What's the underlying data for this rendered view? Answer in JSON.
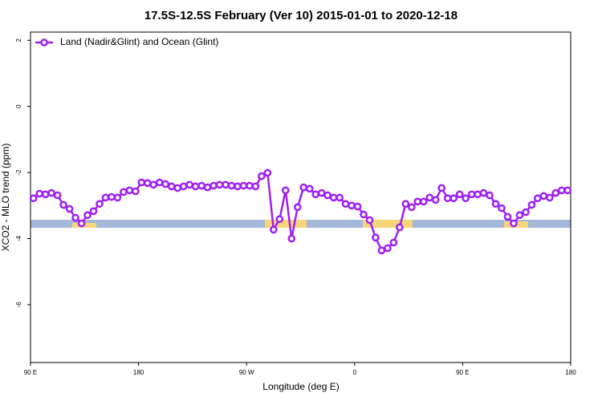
{
  "chart_data": {
    "type": "line",
    "title": "17.5S-12.5S February (Ver 10)   2015-01-01 to 2020-12-18",
    "x_label": "Longitude (deg E)",
    "y_label": "XCO2 - MLO trend (ppm)",
    "xlim": [
      90,
      540
    ],
    "xticks": [
      {
        "value": 90,
        "label": "90 E"
      },
      {
        "value": 180,
        "label": "180"
      },
      {
        "value": 270,
        "label": "90 W"
      },
      {
        "value": 360,
        "label": "0"
      },
      {
        "value": 450,
        "label": "90 E"
      },
      {
        "value": 540,
        "label": "180"
      }
    ],
    "ylim": [
      -7.75,
      2.25
    ],
    "yticks": [
      2,
      0,
      -2,
      -4,
      -6
    ],
    "legend": "top-left",
    "x": [
      92.5,
      97.5,
      102.5,
      107.5,
      112.5,
      117.5,
      122.5,
      127.5,
      132.5,
      137.5,
      142.5,
      147.5,
      152.5,
      157.5,
      162.5,
      167.5,
      172.5,
      177.5,
      182.5,
      187.5,
      192.5,
      197.5,
      202.5,
      207.5,
      212.5,
      217.5,
      222.5,
      227.5,
      232.5,
      237.5,
      242.5,
      247.5,
      252.5,
      257.5,
      262.5,
      267.5,
      272.5,
      277.5,
      282.5,
      287.5,
      292.5,
      297.5,
      302.5,
      307.5,
      312.5,
      317.5,
      322.5,
      327.5,
      332.5,
      337.5,
      342.5,
      347.5,
      352.5,
      357.5,
      362.5,
      367.5,
      372.5,
      377.5,
      382.5,
      387.5,
      392.5,
      397.5,
      402.5,
      407.5,
      412.5,
      417.5,
      422.5,
      427.5,
      432.5,
      437.5,
      442.5,
      447.5,
      452.5,
      457.5,
      462.5,
      467.5,
      472.5,
      477.5,
      482.5,
      487.5,
      492.5,
      497.5,
      502.5,
      507.5,
      512.5,
      517.5,
      522.5,
      527.5,
      532.5,
      537.5
    ],
    "series": [
      {
        "name": "Land (Nadir&Glint) and Ocean (Glint)",
        "color": "#a020f0",
        "values": [
          -2.78,
          -2.64,
          -2.66,
          -2.62,
          -2.69,
          -2.98,
          -3.1,
          -3.37,
          -3.54,
          -3.29,
          -3.17,
          -2.95,
          -2.76,
          -2.74,
          -2.76,
          -2.59,
          -2.54,
          -2.57,
          -2.3,
          -2.32,
          -2.37,
          -2.3,
          -2.35,
          -2.42,
          -2.47,
          -2.42,
          -2.37,
          -2.42,
          -2.4,
          -2.45,
          -2.4,
          -2.37,
          -2.37,
          -2.4,
          -2.42,
          -2.4,
          -2.4,
          -2.42,
          -2.11,
          -2.01,
          -3.73,
          -3.41,
          -2.54,
          -4.0,
          -3.05,
          -2.45,
          -2.49,
          -2.66,
          -2.62,
          -2.69,
          -2.76,
          -2.76,
          -2.95,
          -3.0,
          -3.03,
          -3.27,
          -3.44,
          -3.97,
          -4.36,
          -4.29,
          -4.12,
          -3.66,
          -2.95,
          -3.05,
          -2.88,
          -2.88,
          -2.76,
          -2.83,
          -2.47,
          -2.78,
          -2.78,
          -2.66,
          -2.78,
          -2.66,
          -2.66,
          -2.62,
          -2.69,
          -2.95,
          -3.08,
          -3.34,
          -3.54,
          -3.29,
          -3.2,
          -2.98,
          -2.78,
          -2.71,
          -2.76,
          -2.62,
          -2.54,
          -2.54
        ]
      }
    ]
  }
}
